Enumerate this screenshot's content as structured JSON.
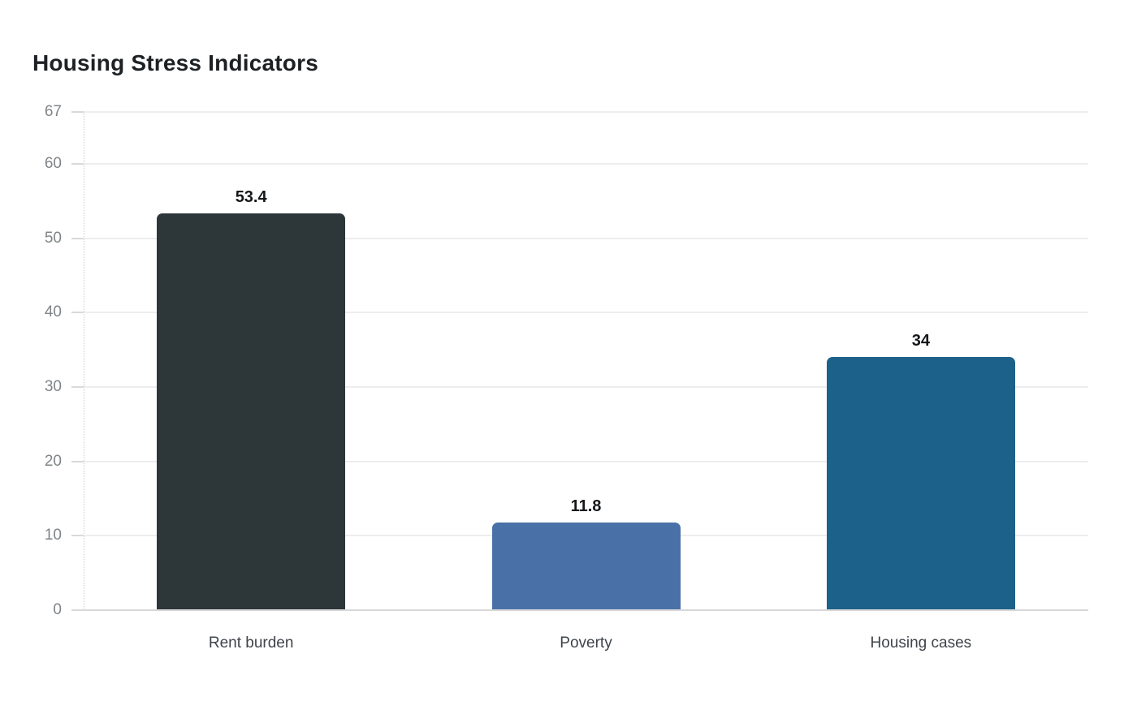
{
  "chart": {
    "title": "Housing Stress Indicators"
  },
  "chart_data": {
    "type": "bar",
    "title": "Housing Stress Indicators",
    "categories": [
      "Rent burden",
      "Poverty",
      "Housing cases"
    ],
    "values": [
      53.4,
      11.8,
      34
    ],
    "value_labels": [
      "53.4",
      "11.8",
      "34"
    ],
    "bar_colors": [
      "#2d3638",
      "#4a70a8",
      "#1b618a"
    ],
    "xlabel": "",
    "ylabel": "",
    "ylim": [
      0,
      67
    ],
    "yticks": [
      0,
      10,
      20,
      30,
      40,
      50,
      60,
      67
    ],
    "grid": "horizontal-light",
    "legend": "none"
  },
  "style": {
    "background": "#ffffff",
    "title_color": "#1e2124",
    "grid_color": "#ededed",
    "zero_line_color": "#d8d8d8",
    "axis_line_color": "#cccccc",
    "tick_mark_color": "#d9d9d9",
    "y_tick_label_color": "#7f8488",
    "category_label_color": "#3f444a",
    "value_label_color": "#15181b"
  }
}
